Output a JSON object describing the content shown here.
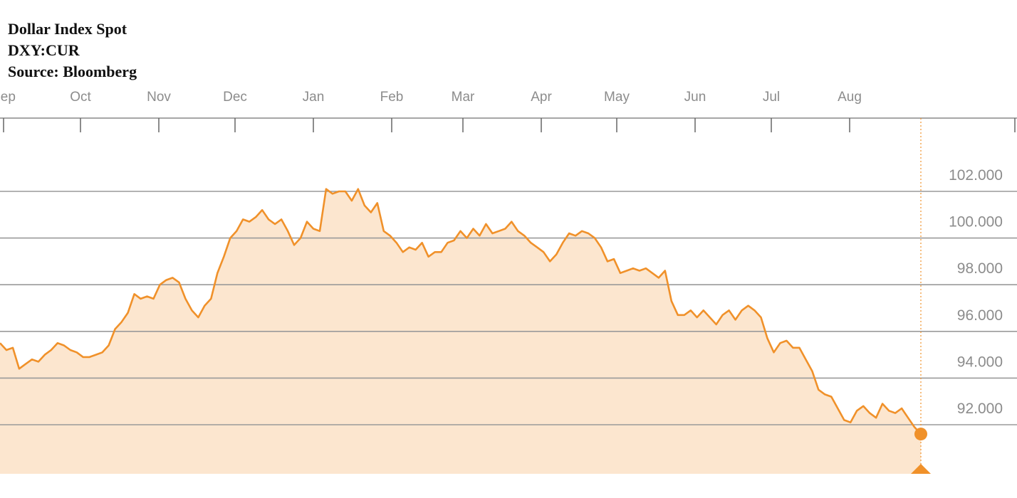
{
  "header": {
    "title": "Dollar Index Spot",
    "ticker": "DXY:CUR",
    "source": "Source: Bloomberg"
  },
  "chart_data": {
    "type": "area",
    "title": "Dollar Index Spot",
    "xlabel": "",
    "ylabel": "",
    "x_tick_labels": [
      "Sep",
      "Oct",
      "Nov",
      "Dec",
      "Jan",
      "Feb",
      "Mar",
      "Apr",
      "May",
      "Jun",
      "Jul",
      "Aug"
    ],
    "y_tick_labels": [
      "102.000",
      "100.000",
      "98.000",
      "96.000",
      "94.000",
      "92.000"
    ],
    "y_ticks": [
      102,
      100,
      98,
      96,
      94,
      92
    ],
    "ylim": [
      89.9,
      104.8
    ],
    "grid": true,
    "colors": {
      "line": "#f0912a",
      "fill": "#fce6cf",
      "grid": "#9a9a9a",
      "marker": "#f0912a",
      "text": "#8c8c8c"
    },
    "series": [
      {
        "values": [
          95.5,
          95.2,
          95.3,
          94.4,
          94.6,
          94.8,
          94.7,
          95.0,
          95.2,
          95.5,
          95.4,
          95.2,
          95.1,
          94.9,
          94.9,
          95.0,
          95.1,
          95.4,
          96.1,
          96.4,
          96.8,
          97.6,
          97.4,
          97.5,
          97.4,
          98.0,
          98.2,
          98.3,
          98.1,
          97.4,
          96.9,
          96.6,
          97.1,
          97.4,
          98.5,
          99.2,
          100.0,
          100.3,
          100.8,
          100.7,
          100.9,
          101.2,
          100.8,
          100.6,
          100.8,
          100.3,
          99.7,
          100.0,
          100.7,
          100.4,
          100.3,
          102.1,
          101.9,
          102.0,
          102.0,
          101.6,
          102.1,
          101.4,
          101.1,
          101.5,
          100.3,
          100.1,
          99.8,
          99.4,
          99.6,
          99.5,
          99.8,
          99.2,
          99.4,
          99.4,
          99.8,
          99.9,
          100.3,
          100.0,
          100.4,
          100.1,
          100.6,
          100.2,
          100.3,
          100.4,
          100.7,
          100.3,
          100.1,
          99.8,
          99.6,
          99.4,
          99.0,
          99.3,
          99.8,
          100.2,
          100.1,
          100.3,
          100.2,
          100.0,
          99.6,
          99.0,
          99.1,
          98.5,
          98.6,
          98.7,
          98.6,
          98.7,
          98.5,
          98.3,
          98.6,
          97.3,
          96.7,
          96.7,
          96.9,
          96.6,
          96.9,
          96.6,
          96.3,
          96.7,
          96.9,
          96.5,
          96.9,
          97.1,
          96.9,
          96.6,
          95.7,
          95.1,
          95.5,
          95.6,
          95.3,
          95.3,
          94.8,
          94.3,
          93.5,
          93.3,
          93.2,
          92.7,
          92.2,
          92.1,
          92.6,
          92.8,
          92.5,
          92.3,
          92.9,
          92.6,
          92.5,
          92.7,
          92.3,
          91.9,
          91.6
        ]
      }
    ],
    "last_point": {
      "value": 91.6
    }
  }
}
